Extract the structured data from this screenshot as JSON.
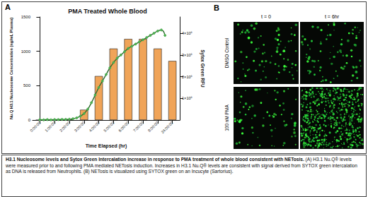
{
  "chart_data": {
    "type": "bar",
    "title": "PMA Treated Whole Blood",
    "x_label": "Time Elapsed (hr)",
    "y_label": "Nu.Q H3.1 Nucleosome Concentration (ng/mL Plasma)",
    "y2_label": "Sytox Green RFU",
    "categories": [
      "0:00:00",
      "1:00:00",
      "2:00:00",
      "3:00:00",
      "4:00:00",
      "5:00:00",
      "6:00:00",
      "7:00:00",
      "8:00:00",
      "24:00:00"
    ],
    "series": [
      {
        "type": "bar",
        "color": "#f0a458",
        "values": [
          0,
          0,
          10,
          150,
          640,
          1040,
          1180,
          1180,
          1040,
          860
        ]
      },
      {
        "type": "line",
        "axis": "y2",
        "color": "#2e6b2e",
        "marker": "circle",
        "x": [
          0,
          0.25,
          0.5,
          0.75,
          1,
          1.25,
          1.5,
          1.75,
          2,
          2.25,
          2.5,
          2.75,
          3,
          3.25,
          3.5,
          3.75,
          4,
          4.25,
          4.5,
          4.75,
          5,
          5.25,
          5.5,
          5.75,
          6,
          6.25,
          6.5,
          6.75,
          7,
          7.25,
          7.5,
          7.75,
          8,
          8.25,
          8.5
        ],
        "values": [
          20000,
          10000,
          20000,
          10000,
          20000,
          20000,
          30000,
          30000,
          40000,
          60000,
          100000,
          180000,
          300000,
          500000,
          800000,
          1150000,
          1500000,
          1800000,
          2100000,
          2400000,
          2650000,
          2850000,
          3000000,
          3150000,
          3300000,
          3400000,
          3500000,
          3600000,
          3700000,
          3800000,
          3900000,
          4000000,
          4100000,
          4150000,
          3900000
        ]
      }
    ],
    "ylim": [
      0,
      1500
    ],
    "yticks": [
      0,
      500,
      1000,
      1500
    ],
    "y2lim": [
      0,
      4750000
    ],
    "y2ticks": [
      {
        "value": 1000000,
        "label": "1×10⁶"
      },
      {
        "value": 2000000,
        "label": "2×10⁶"
      },
      {
        "value": 3000000,
        "label": "3×10⁶"
      },
      {
        "value": 4000000,
        "label": "4×10⁶"
      }
    ],
    "grid": false
  },
  "panel_labels": [
    "A",
    "B"
  ],
  "panel_b": {
    "columns": [
      "t = 0",
      "t = 6hr"
    ],
    "rows": [
      "DMSO Control",
      "100 nM PMA"
    ]
  },
  "caption": {
    "title": "H3.1 Nucleosome levels and Sytox Green Intercalation increase in response to PMA treatment of whole blood consistent with NETosis.",
    "text": "(A) H3.1 Nu.Q® levels were measured prior to and following PMA mediated NETosis induction. Increases in H3.1 Nu.Q® levels are consistent with signal derived from SYTOX green intercalation as DNA is released from Neutrophils. (B) NETosis is visualized using SYTOX green on an Incucyte (Sartorius)."
  }
}
